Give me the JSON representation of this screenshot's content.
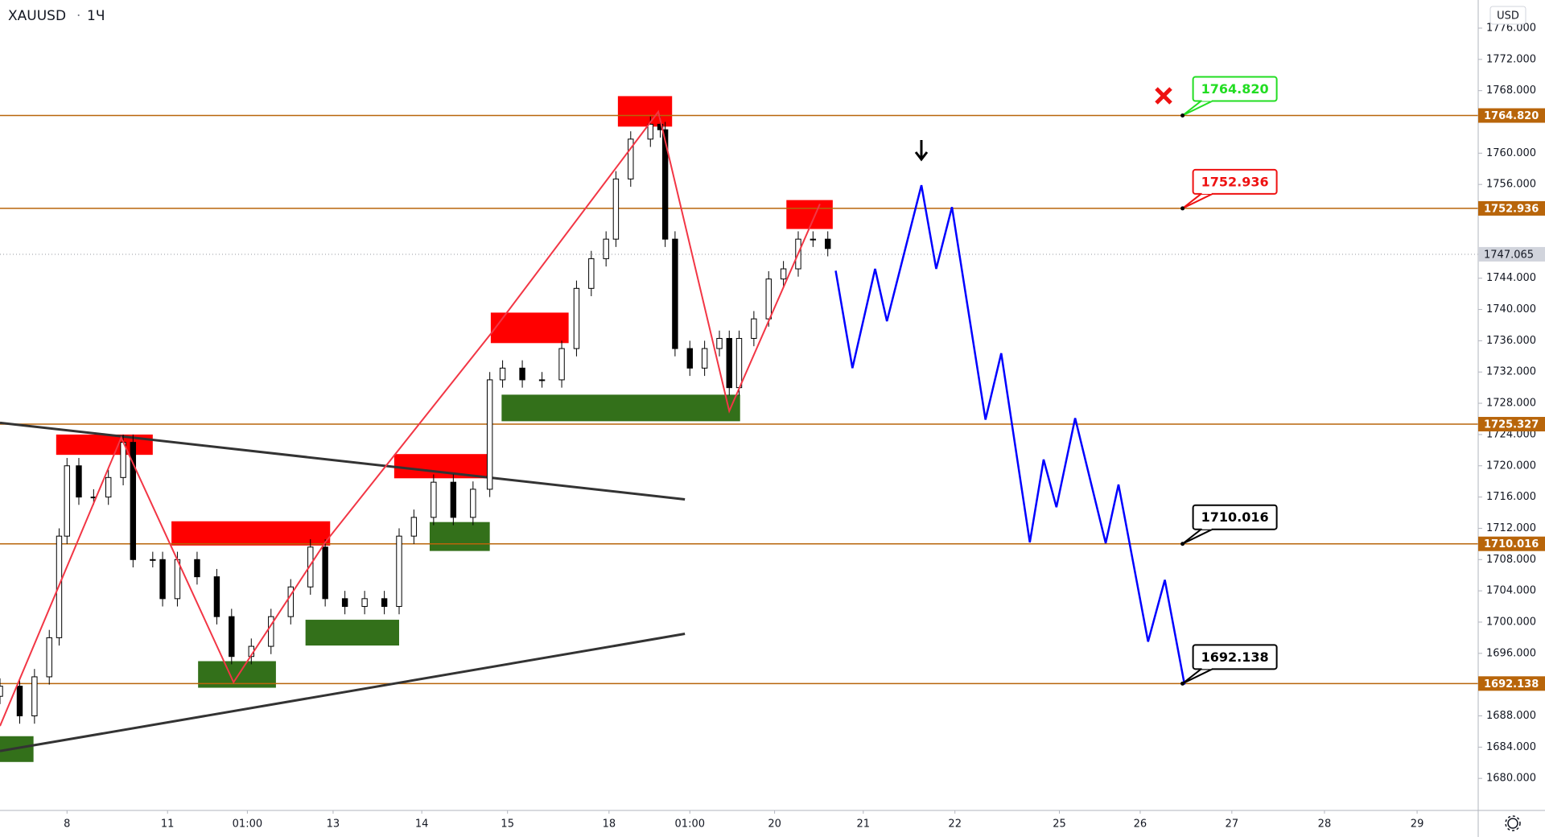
{
  "chart_data": {
    "type": "candlestick",
    "symbol": "XAUUSD",
    "interval": "1Ч",
    "currency": "USD",
    "up_color": "#ffffff",
    "down_color": "#000000",
    "wick_color": "#000000",
    "x": [
      0,
      5,
      8.75,
      12.5,
      15,
      17,
      20,
      23.75,
      27.5,
      31.25,
      33.75,
      38.75,
      41.25,
      45,
      50,
      55,
      58.75,
      63.75,
      68.75,
      73.75,
      78.75,
      82.5,
      87.5,
      92.5,
      97.5,
      101.25,
      105,
      110,
      115,
      120,
      124.25,
      127.5,
      132.5,
      137.5,
      142.5,
      146.25,
      150,
      153.75,
      156.25,
      160,
      165,
      167.5,
      168.75,
      171.25,
      175,
      178.75,
      182.5,
      185,
      187.5,
      191.25,
      195,
      198.75,
      202.5,
      206.25,
      210
    ],
    "open": [
      1690.5,
      1691.8,
      1688,
      1693,
      1698,
      1711,
      1720,
      1716,
      1716,
      1718.5,
      1723,
      1708,
      1708,
      1703,
      1708,
      1705.8,
      1700.7,
      1695.6,
      1696.9,
      1700.7,
      1704.5,
      1709.6,
      1703,
      1702,
      1703,
      1702,
      1711,
      1713.4,
      1717.9,
      1713.4,
      1717,
      1731,
      1732.5,
      1731,
      1731,
      1735,
      1742.7,
      1746.5,
      1749,
      1756.7,
      1761.8,
      1763.7,
      1763,
      1749,
      1735,
      1732.5,
      1735,
      1736.3,
      1730,
      1736.3,
      1738.8,
      1743.9,
      1745.2,
      1749,
      1749
    ],
    "high": [
      1692.8,
      1692.8,
      1694,
      1699,
      1712,
      1721,
      1721,
      1717,
      1719.5,
      1724,
      1724,
      1709,
      1709,
      1709,
      1709,
      1706.8,
      1701.7,
      1697.9,
      1701.7,
      1705.5,
      1710.6,
      1710.6,
      1704,
      1704,
      1704,
      1712,
      1714.4,
      1718.9,
      1718.9,
      1718,
      1732,
      1733.5,
      1733.5,
      1732,
      1736,
      1743.7,
      1747.5,
      1750,
      1757.7,
      1762.8,
      1764.7,
      1764.7,
      1764,
      1750,
      1736,
      1736,
      1737.3,
      1737.3,
      1737.3,
      1739.8,
      1744.9,
      1746.2,
      1750,
      1750,
      1750
    ],
    "low": [
      1689.5,
      1687,
      1687,
      1692,
      1697,
      1710,
      1715,
      1715,
      1715,
      1717.5,
      1707,
      1707,
      1702,
      1702,
      1704.8,
      1699.7,
      1694.6,
      1694.6,
      1695.9,
      1699.7,
      1703.5,
      1702,
      1701,
      1701,
      1701,
      1701,
      1710,
      1712.4,
      1712.4,
      1712.4,
      1716,
      1730,
      1730,
      1730,
      1730,
      1734,
      1741.7,
      1745.5,
      1748,
      1755.7,
      1760.8,
      1762,
      1748,
      1734,
      1731.5,
      1731.5,
      1734,
      1729,
      1729,
      1735.3,
      1737.8,
      1742.9,
      1744.2,
      1748,
      1746.8
    ],
    "close": [
      1691.8,
      1688,
      1693,
      1698,
      1711,
      1720,
      1716,
      1716,
      1718.5,
      1723,
      1708,
      1708,
      1703,
      1708,
      1705.8,
      1700.7,
      1695.6,
      1696.9,
      1700.7,
      1704.5,
      1709.6,
      1703,
      1702,
      1703,
      1702,
      1711,
      1713.4,
      1717.9,
      1713.4,
      1717,
      1731,
      1732.5,
      1731,
      1731,
      1735,
      1742.7,
      1746.5,
      1749,
      1756.7,
      1761.8,
      1763.7,
      1763,
      1749,
      1735,
      1732.5,
      1735,
      1736.3,
      1730,
      1736.3,
      1738.8,
      1743.9,
      1745.2,
      1749,
      1749,
      1747.8
    ],
    "xlim": [
      0,
      375
    ],
    "ylim": [
      1675.9,
      1779.6
    ],
    "xticks": [
      {
        "value": 17,
        "label": "8"
      },
      {
        "value": 42.5,
        "label": "11"
      },
      {
        "value": 62.75,
        "label": "01:00"
      },
      {
        "value": 84.5,
        "label": "13"
      },
      {
        "value": 107,
        "label": "14"
      },
      {
        "value": 128.75,
        "label": "15"
      },
      {
        "value": 154.5,
        "label": "18"
      },
      {
        "value": 175,
        "label": "01:00"
      },
      {
        "value": 196.5,
        "label": "20"
      },
      {
        "value": 219,
        "label": "21"
      },
      {
        "value": 242.25,
        "label": "22"
      },
      {
        "value": 268.75,
        "label": "25"
      },
      {
        "value": 289.25,
        "label": "26"
      },
      {
        "value": 312.5,
        "label": "27"
      },
      {
        "value": 336,
        "label": "28"
      },
      {
        "value": 359.5,
        "label": "29"
      }
    ],
    "yticks": [
      {
        "value": 1680,
        "label": "1680.000"
      },
      {
        "value": 1684,
        "label": "1684.000"
      },
      {
        "value": 1688,
        "label": "1688.000"
      },
      {
        "value": 1696,
        "label": "1696.000"
      },
      {
        "value": 1700,
        "label": "1700.000"
      },
      {
        "value": 1704,
        "label": "1704.000"
      },
      {
        "value": 1708,
        "label": "1708.000"
      },
      {
        "value": 1712,
        "label": "1712.000"
      },
      {
        "value": 1716,
        "label": "1716.000"
      },
      {
        "value": 1720,
        "label": "1720.000"
      },
      {
        "value": 1724,
        "label": "1724.000"
      },
      {
        "value": 1728,
        "label": "1728.000"
      },
      {
        "value": 1732,
        "label": "1732.000"
      },
      {
        "value": 1736,
        "label": "1736.000"
      },
      {
        "value": 1740,
        "label": "1740.000"
      },
      {
        "value": 1744,
        "label": "1744.000"
      },
      {
        "value": 1756,
        "label": "1756.000"
      },
      {
        "value": 1760,
        "label": "1760.000"
      },
      {
        "value": 1768,
        "label": "1768.000"
      },
      {
        "value": 1772,
        "label": "1772.000"
      },
      {
        "value": 1776,
        "label": "1776.000"
      }
    ],
    "levels": [
      {
        "value": 1764.82,
        "label": "1764.820",
        "callout_color": "#22dd22"
      },
      {
        "value": 1752.936,
        "label": "1752.936",
        "callout_color": "#ee1111"
      },
      {
        "value": 1725.327,
        "label": "1725.327"
      },
      {
        "value": 1710.016,
        "label": "1710.016",
        "callout_color": "#000000"
      },
      {
        "value": 1692.138,
        "label": "1692.138",
        "callout_color": "#000000"
      }
    ],
    "level_color": "#b8650a",
    "last_price": {
      "value": 1747.065,
      "label": "1747.065"
    },
    "zones": [
      {
        "x": [
          14.25,
          38.75
        ],
        "y": [
          1721.4,
          1724.0
        ],
        "color": "#ff0000"
      },
      {
        "x": [
          43.5,
          83.75
        ],
        "y": [
          1709.8,
          1712.9
        ],
        "color": "#ff0000"
      },
      {
        "x": [
          100,
          123.5
        ],
        "y": [
          1718.4,
          1721.5
        ],
        "color": "#ff0000"
      },
      {
        "x": [
          124.5,
          144.25
        ],
        "y": [
          1735.7,
          1739.6
        ],
        "color": "#ff0000"
      },
      {
        "x": [
          156.75,
          170.5
        ],
        "y": [
          1763.4,
          1767.3
        ],
        "color": "#ff0000"
      },
      {
        "x": [
          199.5,
          211.25
        ],
        "y": [
          1750.3,
          1754.0
        ],
        "color": "#ff0000"
      },
      {
        "x": [
          0,
          8.5
        ],
        "y": [
          1682.1,
          1685.4
        ],
        "color": "#33701a"
      },
      {
        "x": [
          50.25,
          70
        ],
        "y": [
          1691.6,
          1695.0
        ],
        "color": "#33701a"
      },
      {
        "x": [
          77.5,
          101.25
        ],
        "y": [
          1697.0,
          1700.3
        ],
        "color": "#33701a"
      },
      {
        "x": [
          109,
          124.25
        ],
        "y": [
          1709.1,
          1712.8
        ],
        "color": "#33701a"
      },
      {
        "x": [
          127.25,
          187.75
        ],
        "y": [
          1725.7,
          1729.1
        ],
        "color": "#33701a"
      }
    ],
    "trendlines": [
      {
        "x": [
          0,
          173.75
        ],
        "y": [
          1725.5,
          1715.7
        ],
        "color": "#333333"
      },
      {
        "x": [
          0,
          173.75
        ],
        "y": [
          1683.5,
          1698.5
        ],
        "color": "#333333"
      }
    ],
    "zigzag": {
      "x": [
        0,
        30.75,
        59.25,
        82.5,
        125,
        167,
        185,
        208
      ],
      "y": [
        1686.7,
        1723.6,
        1692.3,
        1710.2,
        1737.2,
        1765.3,
        1727.0,
        1753.5
      ],
      "color": "#f23645"
    },
    "projection": {
      "x": [
        212,
        216.25,
        222,
        225,
        233.75,
        237.5,
        241.5,
        250,
        254,
        261.25,
        264.75,
        268,
        272.75,
        280.5,
        283.75,
        291.25,
        295.5,
        300.5
      ],
      "y": [
        1744.96,
        1732.5,
        1745.2,
        1738.5,
        1755.9,
        1745.2,
        1753.1,
        1725.9,
        1734.4,
        1710.2,
        1720.8,
        1714.7,
        1726.1,
        1710.1,
        1717.6,
        1697.5,
        1705.4,
        1692.0
      ],
      "color": "#0000ff"
    }
  }
}
